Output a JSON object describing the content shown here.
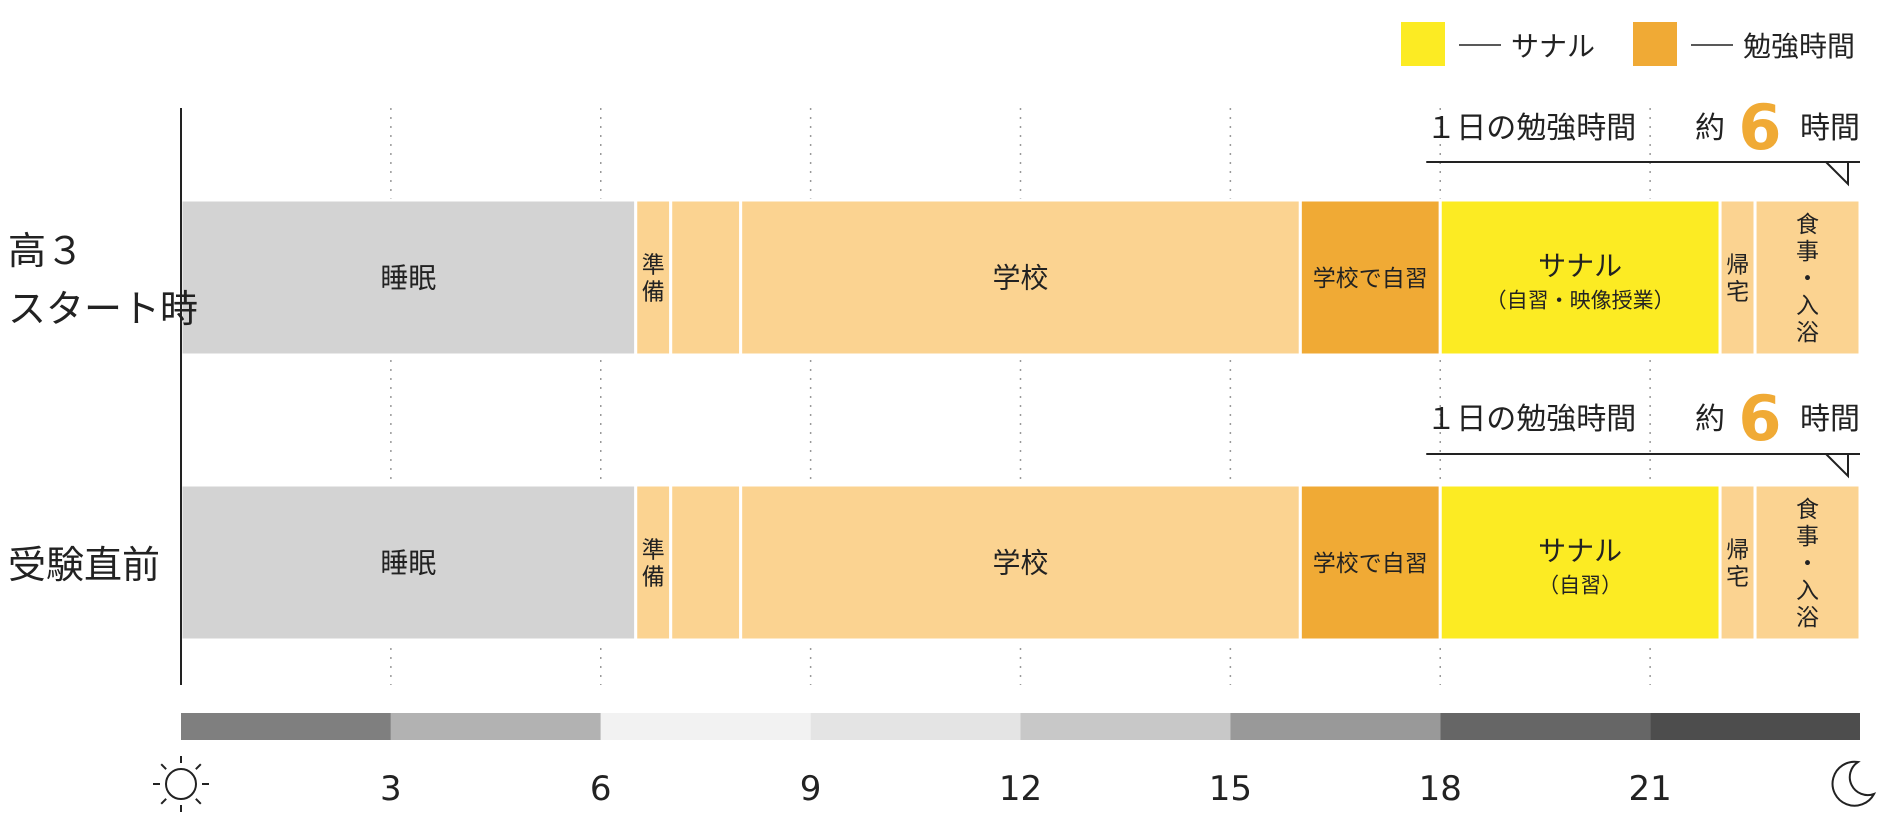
{
  "chart_data": {
    "type": "bar",
    "subtype": "timeline",
    "x_unit": "hour",
    "xlim": [
      0,
      24
    ],
    "x_ticks": [
      3,
      6,
      9,
      12,
      15,
      18,
      21
    ],
    "tick_labels": [
      "3",
      "6",
      "9",
      "12",
      "15",
      "18",
      "21"
    ],
    "start_icon": "sun-icon",
    "end_icon": "moon-icon",
    "gridlines": "dotted-vertical",
    "legend": {
      "placement": "top-right",
      "entries": [
        {
          "label": "サナル",
          "color": "#FCEB23"
        },
        {
          "label": "勉強時間",
          "color": "#F0AA35"
        }
      ]
    },
    "colors": {
      "sleep": "#D3D3D3",
      "activity": "#FBD391",
      "study": "#F0AA35",
      "sanaru": "#FCEB23"
    },
    "daylight_bar": [
      {
        "start": 0,
        "end": 3,
        "color": "#7F7F7F"
      },
      {
        "start": 3,
        "end": 6,
        "color": "#B2B2B2"
      },
      {
        "start": 6,
        "end": 9,
        "color": "#F2F2F2"
      },
      {
        "start": 9,
        "end": 12,
        "color": "#E4E4E4"
      },
      {
        "start": 12,
        "end": 15,
        "color": "#C8C8C8"
      },
      {
        "start": 15,
        "end": 18,
        "color": "#999999"
      },
      {
        "start": 18,
        "end": 21,
        "color": "#666666"
      },
      {
        "start": 21,
        "end": 24,
        "color": "#4D4D4D"
      }
    ],
    "rows": [
      {
        "label": "高３\nスタート時",
        "study_summary": {
          "prefix": "１日の勉強時間",
          "approx": "約",
          "value": "6",
          "unit": "時間",
          "start": 17.8,
          "end": 24
        },
        "segments": [
          {
            "start": 0,
            "end": 6.5,
            "label": "睡眠",
            "kind": "sleep"
          },
          {
            "start": 6.5,
            "end": 7.0,
            "label": "準\n備",
            "kind": "activity"
          },
          {
            "start": 7.0,
            "end": 8.0,
            "label": "",
            "kind": "activity"
          },
          {
            "start": 8.0,
            "end": 16.0,
            "label": "学校",
            "kind": "activity"
          },
          {
            "start": 16.0,
            "end": 18.0,
            "label": "学校で自習",
            "kind": "study"
          },
          {
            "start": 18.0,
            "end": 22.0,
            "label": "サナル",
            "sublabel": "（自習・映像授業）",
            "kind": "sanaru"
          },
          {
            "start": 22.0,
            "end": 22.5,
            "label": "帰\n宅",
            "kind": "activity"
          },
          {
            "start": 22.5,
            "end": 24.0,
            "label": "食\n事\n・\n入\n浴",
            "kind": "activity"
          }
        ]
      },
      {
        "label": "受験直前",
        "study_summary": {
          "prefix": "１日の勉強時間",
          "approx": "約",
          "value": "6",
          "unit": "時間",
          "start": 17.8,
          "end": 24
        },
        "segments": [
          {
            "start": 0,
            "end": 6.5,
            "label": "睡眠",
            "kind": "sleep"
          },
          {
            "start": 6.5,
            "end": 7.0,
            "label": "準\n備",
            "kind": "activity"
          },
          {
            "start": 7.0,
            "end": 8.0,
            "label": "",
            "kind": "activity"
          },
          {
            "start": 8.0,
            "end": 16.0,
            "label": "学校",
            "kind": "activity"
          },
          {
            "start": 16.0,
            "end": 18.0,
            "label": "学校で自習",
            "kind": "study"
          },
          {
            "start": 18.0,
            "end": 22.0,
            "label": "サナル",
            "sublabel": "（自習）",
            "kind": "sanaru"
          },
          {
            "start": 22.0,
            "end": 22.5,
            "label": "帰\n宅",
            "kind": "activity"
          },
          {
            "start": 22.5,
            "end": 24.0,
            "label": "食\n事\n・\n入\n浴",
            "kind": "activity"
          }
        ]
      }
    ]
  }
}
